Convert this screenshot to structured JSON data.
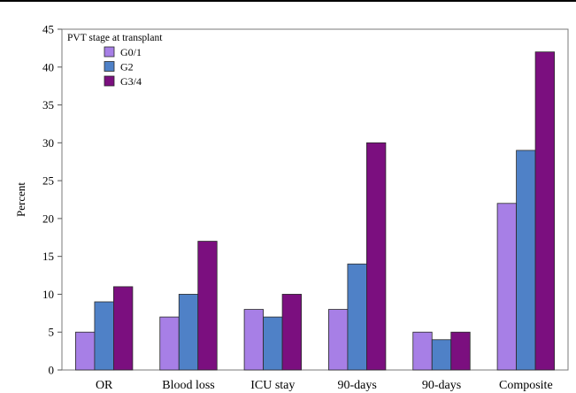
{
  "chart_data": {
    "type": "bar",
    "title": "",
    "xlabel": "",
    "ylabel": "Percent",
    "ylim": [
      0,
      45
    ],
    "yticks": [
      0,
      5,
      10,
      15,
      20,
      25,
      30,
      35,
      40,
      45
    ],
    "grid": false,
    "legend": {
      "title": "PVT stage at transplant",
      "placement": "top-left"
    },
    "categories": [
      "OR",
      "Blood loss",
      "ICU stay",
      "90-days",
      "90-days",
      "Composite"
    ],
    "series": [
      {
        "name": "G0/1",
        "color": "#a77fe6",
        "values": [
          5,
          7,
          8,
          8,
          5,
          22
        ]
      },
      {
        "name": "G2",
        "color": "#4f81c7",
        "values": [
          9,
          10,
          7,
          14,
          4,
          29
        ]
      },
      {
        "name": "G3/4",
        "color": "#7b0f7f",
        "values": [
          11,
          17,
          10,
          30,
          5,
          42
        ]
      }
    ]
  }
}
